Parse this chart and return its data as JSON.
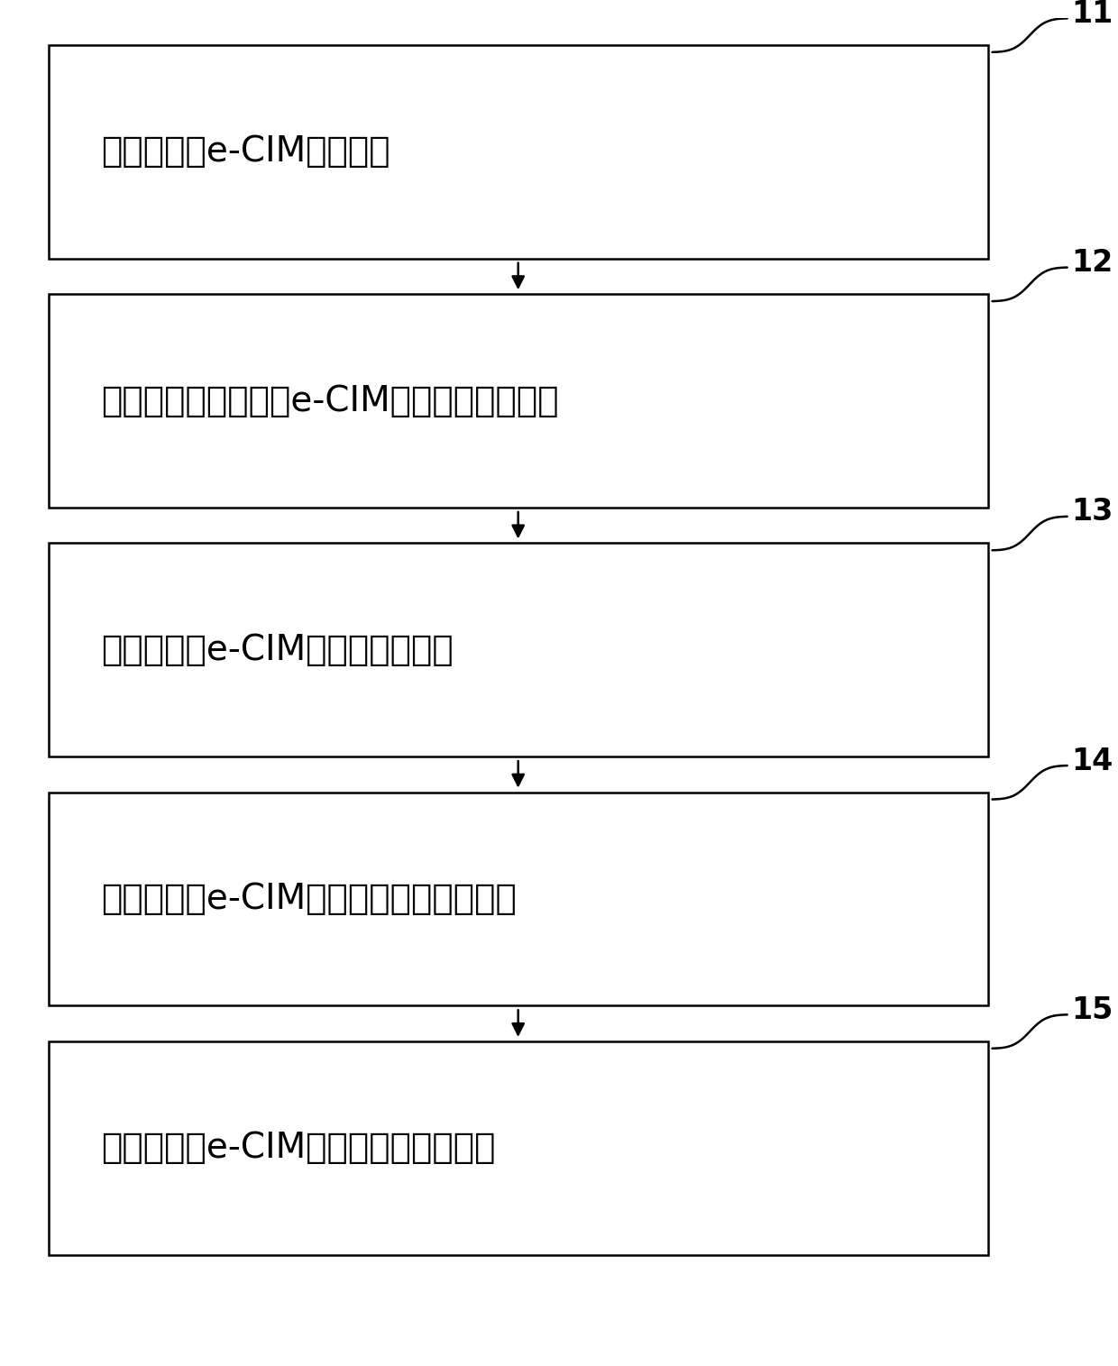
{
  "boxes": [
    {
      "label": "构建能源网e-CIM拓扑模型",
      "number": "11"
    },
    {
      "label": "基于元数据对能源网e-CIM拓扑模型进行扩展",
      "number": "12"
    },
    {
      "label": "设计能源网e-CIM拓扑模型的接口",
      "number": "13"
    },
    {
      "label": "设计能源网e-CIM拓扑模型的类和关联类",
      "number": "14"
    },
    {
      "label": "设计能源网e-CIM拓扑模型的应用接口",
      "number": "15"
    }
  ],
  "box_color": "#ffffff",
  "box_edge_color": "#000000",
  "arrow_color": "#000000",
  "text_color": "#000000",
  "number_color": "#000000",
  "background_color": "#ffffff",
  "font_size": 28,
  "number_font_size": 24,
  "line_width": 1.8
}
